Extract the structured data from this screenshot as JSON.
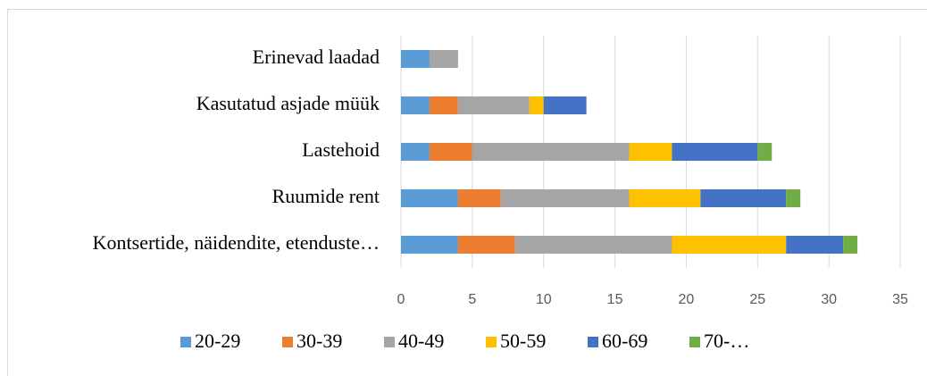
{
  "chart_data": {
    "type": "stacked-barh",
    "categories": [
      "Erinevad laadad",
      "Kasutatud asjade müük",
      "Lastehoid",
      "Ruumide rent",
      "Kontsertide, näidendite, etenduste…"
    ],
    "series": [
      {
        "name": "20-29",
        "color": "#5b9bd5",
        "values": [
          2,
          2,
          2,
          4,
          4
        ]
      },
      {
        "name": "30-39",
        "color": "#ed7d31",
        "values": [
          0,
          2,
          3,
          3,
          4
        ]
      },
      {
        "name": "40-49",
        "color": "#a5a5a5",
        "values": [
          2,
          5,
          11,
          9,
          11
        ]
      },
      {
        "name": "50-59",
        "color": "#ffc000",
        "values": [
          0,
          1,
          3,
          5,
          8
        ]
      },
      {
        "name": "60-69",
        "color": "#4472c4",
        "values": [
          0,
          3,
          6,
          6,
          4
        ]
      },
      {
        "name": "70-…",
        "color": "#70ad47",
        "values": [
          0,
          0,
          1,
          1,
          1
        ]
      }
    ],
    "xlim": [
      0,
      35
    ],
    "xticks": [
      0,
      5,
      10,
      15,
      20,
      25,
      30,
      35
    ],
    "grid": true,
    "legend": "bottom"
  }
}
